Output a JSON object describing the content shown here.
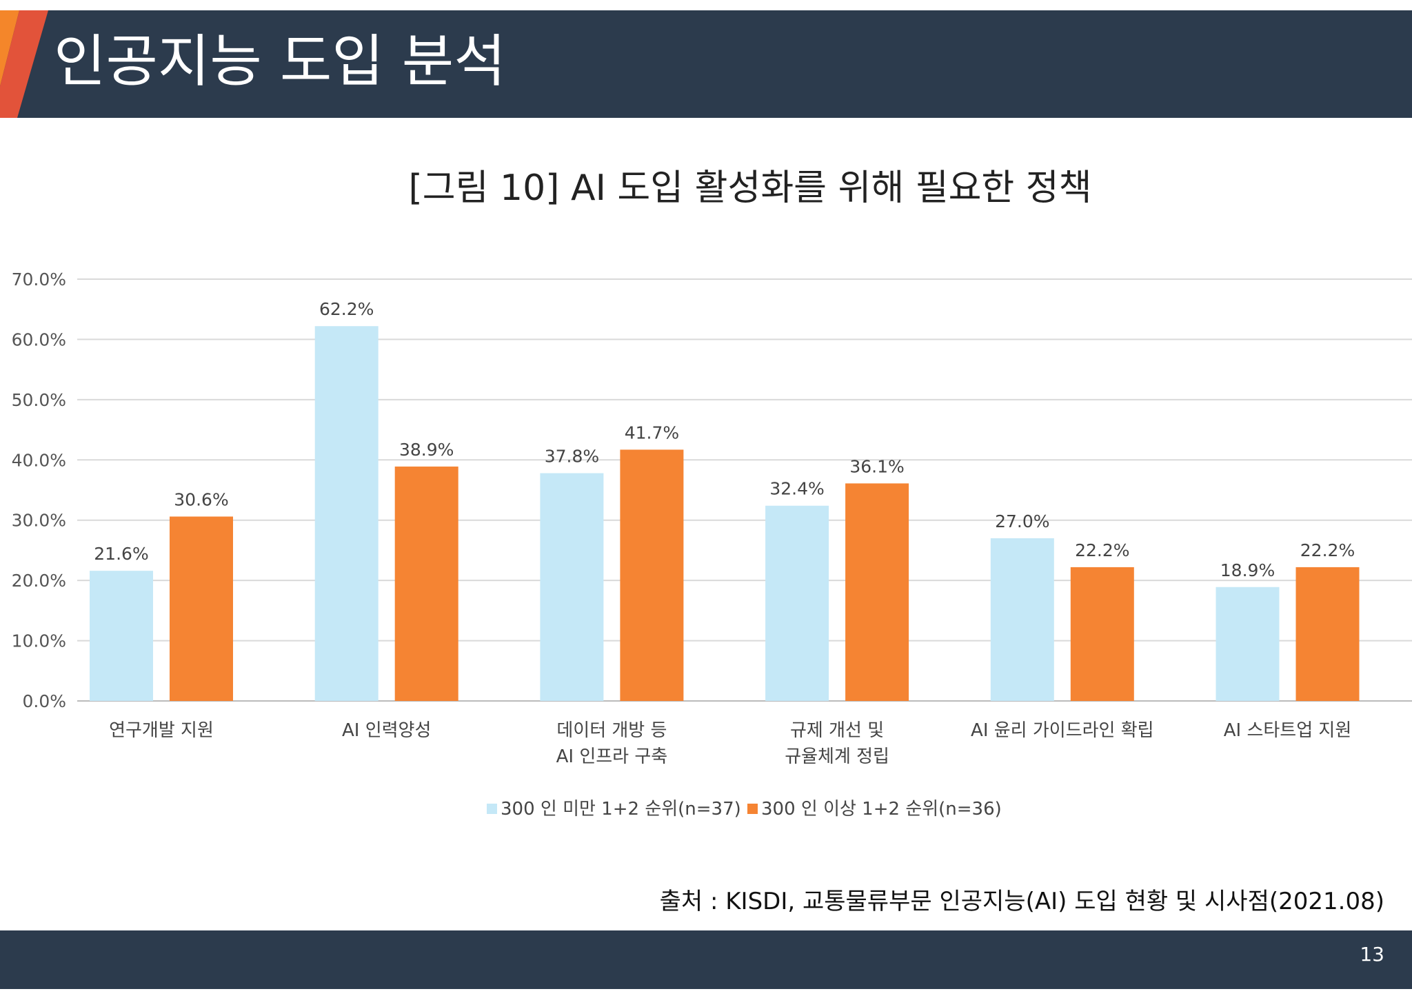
{
  "slide": {
    "title": "인공지능 도입 분석",
    "source": "출처 : KISDI, 교통물류부문 인공지능(AI) 도입 현황 및 시사점(2021.08)",
    "page_number": "13"
  },
  "colors": {
    "header_bg": "#2c3b4d",
    "accent_orange": "#f4862a",
    "accent_red": "#e2533a",
    "series_light": "#c5e8f7",
    "series_orange": "#f58433"
  },
  "chart_data": {
    "type": "bar",
    "title": "[그림 10] AI 도입 활성화를 위해 필요한 정책",
    "categories": [
      [
        "연구개발  지원"
      ],
      [
        "AI 인력양성"
      ],
      [
        "데이터 개방 등",
        "AI 인프라 구축"
      ],
      [
        "규제 개선 및",
        "규율체계 정립"
      ],
      [
        "AI 윤리 가이드라인 확립"
      ],
      [
        "AI 스타트업 지원"
      ]
    ],
    "series": [
      {
        "name": "300 인 미만 1+2 순위(n=37)",
        "color": "#c5e8f7",
        "values": [
          21.6,
          62.2,
          37.8,
          32.4,
          27.0,
          18.9
        ],
        "labels": [
          "21.6%",
          "62.2%",
          "37.8%",
          "32.4%",
          "27.0%",
          "18.9%"
        ]
      },
      {
        "name": "300 인 이상 1+2 순위(n=36)",
        "color": "#f58433",
        "values": [
          30.6,
          38.9,
          41.7,
          36.1,
          22.2,
          22.2
        ],
        "labels": [
          "30.6%",
          "38.9%",
          "41.7%",
          "36.1%",
          "22.2%",
          "22.2%"
        ]
      }
    ],
    "ylim": [
      0,
      70
    ],
    "yticks": [
      "0.0%",
      "10.0%",
      "20.0%",
      "30.0%",
      "40.0%",
      "50.0%",
      "60.0%",
      "70.0%"
    ],
    "grid": true,
    "legend": "bottom-center"
  }
}
